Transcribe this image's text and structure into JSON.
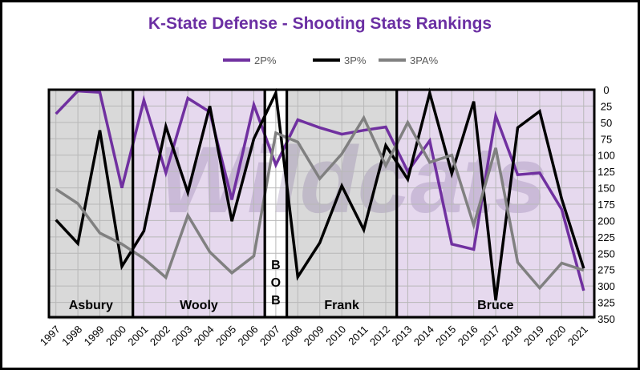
{
  "chart_data": {
    "type": "line",
    "title": "K-State Defense - Shooting Stats Rankings",
    "xlabel": "",
    "ylabel": "",
    "x": [
      "1997",
      "1998",
      "1999",
      "2000",
      "2001",
      "2002",
      "2003",
      "2004",
      "2005",
      "2006",
      "2007",
      "2008",
      "2009",
      "2010",
      "2011",
      "2012",
      "2013",
      "2014",
      "2015",
      "2016",
      "2017",
      "2018",
      "2019",
      "2020",
      "2021"
    ],
    "ylim": [
      0,
      350
    ],
    "y_inverted": true,
    "yticks": [
      0,
      25,
      50,
      75,
      100,
      125,
      150,
      175,
      200,
      225,
      250,
      275,
      300,
      325,
      350
    ],
    "grid": true,
    "legend_position": "top",
    "series": [
      {
        "name": "2P%",
        "color": "#7030a0",
        "values": [
          37,
          2,
          4,
          150,
          16,
          127,
          13,
          34,
          168,
          23,
          115,
          46,
          58,
          68,
          62,
          57,
          125,
          78,
          236,
          244,
          40,
          130,
          127,
          183,
          307
        ]
      },
      {
        "name": "3P%",
        "color": "#000000",
        "values": [
          199,
          235,
          62,
          270,
          216,
          56,
          157,
          25,
          201,
          75,
          5,
          286,
          234,
          147,
          214,
          85,
          137,
          5,
          128,
          18,
          322,
          58,
          33,
          167,
          273
        ]
      },
      {
        "name": "3PA%",
        "color": "#808080",
        "values": [
          152,
          174,
          219,
          236,
          258,
          287,
          192,
          248,
          280,
          254,
          66,
          80,
          136,
          98,
          43,
          116,
          50,
          111,
          100,
          207,
          89,
          264,
          303,
          265,
          276
        ]
      }
    ],
    "eras": [
      {
        "label": "Asbury",
        "start": "1997",
        "end": "2000",
        "color": "#d9d9d9"
      },
      {
        "label": "Wooly",
        "start": "2001",
        "end": "2006",
        "color": "#e6d9ee"
      },
      {
        "label": "BOB",
        "label_chars": [
          "B",
          "O",
          "B"
        ],
        "start": "2007",
        "end": "2007",
        "color": "#ffffff"
      },
      {
        "label": "Frank",
        "start": "2008",
        "end": "2012",
        "color": "#d9d9d9"
      },
      {
        "label": "Bruce",
        "start": "2013",
        "end": "2021",
        "color": "#e6d9ee"
      }
    ],
    "watermark": "Wildcats"
  }
}
